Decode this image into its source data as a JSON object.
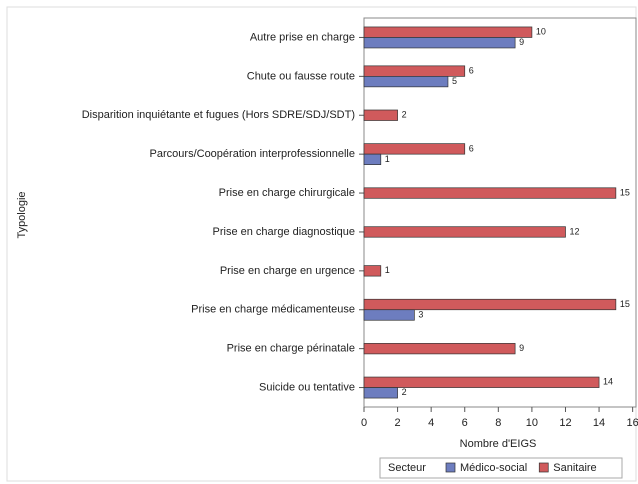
{
  "chart_data": {
    "type": "bar",
    "orientation": "horizontal",
    "y_label": "Typologie",
    "x_label": "Nombre d'EIGS",
    "legend_title": "Secteur",
    "categories": [
      "Autre prise en charge",
      "Chute ou fausse route",
      "Disparition inquiétante et fugues (Hors SDRE/SDJ/SDT)",
      "Parcours/Coopération interprofessionnelle",
      "Prise en charge chirurgicale",
      "Prise en charge diagnostique",
      "Prise en charge en urgence",
      "Prise en charge médicamenteuse",
      "Prise en charge périnatale",
      "Suicide ou tentative"
    ],
    "series": [
      {
        "name": "Sanitaire",
        "color": "#d05a5c",
        "values": [
          10,
          6,
          2,
          6,
          15,
          12,
          1,
          15,
          9,
          14
        ]
      },
      {
        "name": "Médico-social",
        "color": "#6d7dbf",
        "values": [
          9,
          5,
          null,
          1,
          null,
          null,
          null,
          3,
          null,
          2
        ]
      }
    ],
    "legend_order": [
      1,
      0
    ],
    "xlim": [
      0,
      16.2
    ],
    "xticks": [
      0,
      2,
      4,
      6,
      8,
      10,
      12,
      14,
      16
    ]
  }
}
